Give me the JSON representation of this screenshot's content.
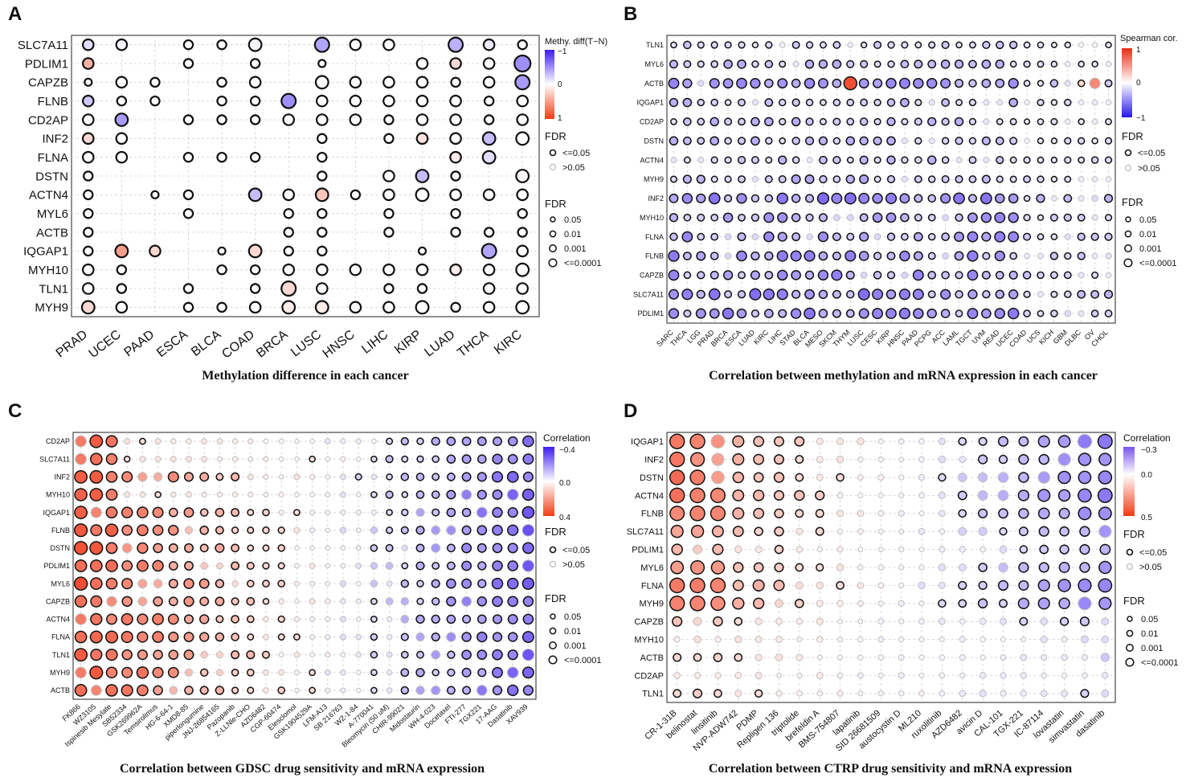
{
  "chart_data": [
    {
      "panel": "A",
      "type": "scatter",
      "caption": "Methylation difference in each cancer",
      "legend_title": "Methy. diff(T−N)",
      "colorbar_ticks": [
        "−1",
        "0",
        "1"
      ],
      "colorbar_range": [
        -1,
        1
      ],
      "colorbar_top": "#3c1cf0",
      "colorbar_mid": "#ffffff",
      "colorbar_bot": "#f03c14",
      "fdr_title_1": "FDR",
      "fdr_sig": [
        "<=0.05",
        ">0.05"
      ],
      "fdr_title_2": "FDR",
      "fdr_sizes": [
        "0.05",
        "0.01",
        "0.001",
        "<=0.0001"
      ],
      "rows": [
        "SLC7A11",
        "PDLIM1",
        "CAPZB",
        "FLNB",
        "CD2AP",
        "INF2",
        "FLNA",
        "DSTN",
        "ACTN4",
        "MYL6",
        "ACTB",
        "IQGAP1",
        "MYH10",
        "TLN1",
        "MYH9"
      ],
      "cols": [
        "PRAD",
        "UCEC",
        "PAAD",
        "ESCA",
        "BLCA",
        "COAD",
        "BRCA",
        "LUSC",
        "HNSC",
        "LIHC",
        "KIRP",
        "LUAD",
        "THCA",
        "KIRC"
      ],
      "values": [
        [
          -0.15,
          -0.05,
          null,
          0,
          0,
          -0.05,
          null,
          -0.4,
          0,
          0,
          null,
          -0.35,
          -0.1,
          0
        ],
        [
          0.4,
          null,
          null,
          0,
          null,
          0,
          null,
          0,
          null,
          null,
          0,
          0.2,
          0,
          -0.5
        ],
        [
          0,
          0,
          0,
          null,
          0,
          0,
          null,
          0,
          0,
          0,
          0,
          0,
          0,
          -0.45
        ],
        [
          -0.25,
          0,
          0,
          null,
          0,
          0,
          -0.5,
          0,
          0,
          0,
          0,
          0,
          0,
          0
        ],
        [
          0,
          -0.45,
          null,
          0,
          0,
          0,
          0,
          0,
          0,
          0,
          0,
          0,
          0,
          0
        ],
        [
          0.2,
          0,
          null,
          null,
          null,
          null,
          null,
          0,
          null,
          0,
          0.15,
          0,
          -0.3,
          0
        ],
        [
          0,
          0,
          null,
          0,
          0,
          0,
          null,
          0,
          null,
          null,
          null,
          0.1,
          -0.15,
          null
        ],
        [
          0,
          null,
          null,
          null,
          null,
          null,
          null,
          0,
          null,
          0,
          -0.3,
          0,
          null,
          0.05
        ],
        [
          0,
          null,
          0,
          0,
          null,
          -0.3,
          0,
          0.3,
          0,
          0,
          0,
          0,
          0,
          0
        ],
        [
          0,
          null,
          null,
          0,
          null,
          null,
          0,
          0,
          null,
          0,
          null,
          0,
          null,
          0
        ],
        [
          0,
          null,
          null,
          null,
          null,
          null,
          0,
          0,
          null,
          0,
          null,
          0,
          0,
          0
        ],
        [
          0,
          0.5,
          0.2,
          null,
          0,
          0.2,
          0,
          0,
          null,
          null,
          0,
          null,
          -0.4,
          0
        ],
        [
          0,
          0,
          null,
          null,
          0,
          0,
          0,
          0,
          0,
          0,
          0,
          0.1,
          0,
          0
        ],
        [
          0,
          0,
          null,
          0,
          null,
          0,
          0.2,
          0,
          null,
          0,
          0,
          null,
          0,
          0
        ],
        [
          0.2,
          0,
          null,
          0,
          0,
          0,
          0.1,
          0.1,
          0,
          0,
          0,
          0,
          0,
          0
        ]
      ],
      "sizes": [
        [
          2,
          2,
          null,
          1,
          1,
          3,
          null,
          4,
          2,
          2,
          null,
          4,
          2,
          1
        ],
        [
          2,
          null,
          null,
          1,
          null,
          1,
          null,
          0,
          null,
          null,
          2,
          2,
          2,
          5
        ],
        [
          0,
          2,
          1,
          null,
          1,
          2,
          null,
          3,
          2,
          2,
          2,
          1,
          2,
          4
        ],
        [
          2,
          1,
          1,
          null,
          1,
          1,
          4,
          2,
          2,
          2,
          2,
          2,
          1,
          2
        ],
        [
          2,
          3,
          null,
          1,
          1,
          1,
          2,
          2,
          2,
          1,
          2,
          2,
          1,
          2
        ],
        [
          2,
          2,
          null,
          null,
          null,
          null,
          null,
          1,
          null,
          1,
          2,
          2,
          3,
          3
        ],
        [
          2,
          2,
          null,
          1,
          1,
          1,
          null,
          1,
          null,
          null,
          null,
          2,
          3,
          null
        ],
        [
          1,
          null,
          null,
          null,
          null,
          null,
          null,
          1,
          null,
          2,
          3,
          1,
          null,
          3
        ],
        [
          1,
          null,
          0,
          1,
          null,
          3,
          2,
          3,
          1,
          2,
          3,
          2,
          2,
          2
        ],
        [
          1,
          null,
          null,
          1,
          null,
          null,
          1,
          1,
          null,
          1,
          null,
          1,
          null,
          1
        ],
        [
          1,
          null,
          null,
          null,
          null,
          null,
          1,
          1,
          null,
          1,
          null,
          1,
          1,
          1
        ],
        [
          1,
          3,
          2,
          null,
          0,
          3,
          1,
          1,
          null,
          null,
          0,
          null,
          4,
          2
        ],
        [
          2,
          1,
          null,
          null,
          1,
          1,
          2,
          2,
          2,
          2,
          2,
          2,
          2,
          3
        ],
        [
          2,
          1,
          null,
          1,
          null,
          1,
          4,
          2,
          null,
          1,
          1,
          null,
          2,
          2
        ],
        [
          3,
          2,
          null,
          1,
          1,
          2,
          3,
          3,
          2,
          2,
          3,
          1,
          2,
          3
        ]
      ]
    },
    {
      "panel": "B",
      "type": "scatter",
      "caption": "Correlation between methylation and mRNA expression in each cancer",
      "legend_title": "Spearman cor.",
      "colorbar_ticks": [
        "1",
        "0",
        "−1"
      ],
      "colorbar_range": [
        -1,
        1
      ],
      "colorbar_top": "#f02814",
      "colorbar_mid": "#ffffff",
      "colorbar_bot": "#2814f0",
      "fdr_title_1": "FDR",
      "fdr_sig": [
        "<=0.05",
        ">0.05"
      ],
      "fdr_title_2": "FDR",
      "fdr_sizes": [
        "0.05",
        "0.01",
        "0.001",
        "<=0.0001"
      ],
      "rows": [
        "TLN1",
        "MYL6",
        "ACTB",
        "IQGAP1",
        "CD2AP",
        "DSTN",
        "ACTN4",
        "MYH9",
        "INF2",
        "MYH10",
        "FLNA",
        "FLNB",
        "CAPZB",
        "SLC7A11",
        "PDLIM1"
      ],
      "cols": [
        "SARC",
        "THCA",
        "LGG",
        "PRAD",
        "BRCA",
        "ESCA",
        "LUAD",
        "KIRC",
        "LIHC",
        "STAD",
        "BLCA",
        "MESO",
        "SKCM",
        "THYM",
        "LUSC",
        "CESC",
        "KIRP",
        "HNSC",
        "PAAD",
        "PCPG",
        "ACC",
        "LAML",
        "TGCT",
        "UVM",
        "READ",
        "UCEC",
        "COAD",
        "UCS",
        "KICH",
        "GBM",
        "DLBC",
        "OV",
        "CHOL"
      ],
      "pattern": [
        0.22,
        0.3,
        0.45,
        0.3,
        0.3,
        0.3,
        0.3,
        0.35,
        0.55,
        0.45,
        0.45,
        0.5,
        0.45,
        0.55,
        0.5
      ],
      "highlights": [
        {
          "row": "ACTB",
          "col": "THYM",
          "value": 0.9
        },
        {
          "row": "ACTB",
          "col": "OV",
          "value": 0.6
        },
        {
          "row": "ACTB",
          "col": "DLBC",
          "value": 0.2
        }
      ]
    },
    {
      "panel": "C",
      "type": "scatter",
      "caption": "Correlation between GDSC drug sensitivity and mRNA expression",
      "legend_title": "Correlation",
      "colorbar_ticks": [
        "−0.4",
        "0.0",
        "0.4"
      ],
      "colorbar_range": [
        -0.4,
        0.4
      ],
      "colorbar_top": "#3c1cf0",
      "colorbar_mid": "#ffffff",
      "colorbar_bot": "#f03c14",
      "fdr_title_1": "FDR",
      "fdr_sig": [
        "<=0.05",
        ">0.05"
      ],
      "fdr_title_2": "FDR",
      "fdr_sizes": [
        "0.05",
        "0.01",
        "0.001",
        "<=0.0001"
      ],
      "rows": [
        "CD2AP",
        "SLC7A11",
        "INF2",
        "MYH10",
        "IQGAP1",
        "FLNB",
        "DSTN",
        "PDLIM1",
        "MYL6",
        "CAPZB",
        "ACTN4",
        "FLNA",
        "TLN1",
        "MYH9",
        "ACTB"
      ],
      "cols": [
        "FK866",
        "WZ3105",
        "Ispinesib Mesylate",
        "SB52334",
        "GSK269962A",
        "Temsirolimus",
        "HG-6-64-1",
        "XMD8-85",
        "piperlongumine",
        "JNJ-26854165",
        "Pazopanib",
        "Z-LLNle-CHO",
        "AZD6482",
        "CGP-60474",
        "Elesclomol",
        "GSK1904529A",
        "LFM-A13",
        "SB 216763",
        "WZ-1-84",
        "A-770041",
        "Bleomycin (50 uM)",
        "CHIR-99021",
        "Midostaurin",
        "WH-4-023",
        "Docetaxel",
        "FTI-277",
        "TGX221",
        "17-AAG",
        "Dasatinib",
        "XAV939"
      ]
    },
    {
      "panel": "D",
      "type": "scatter",
      "caption": "Correlation between CTRP drug sensitivity and mRNA expression",
      "legend_title": "Correlation",
      "colorbar_ticks": [
        "−0.3",
        "0.0",
        "0.5"
      ],
      "colorbar_range": [
        -0.3,
        0.5
      ],
      "colorbar_top": "#7a52f0",
      "colorbar_mid": "#ffffff",
      "colorbar_bot": "#f03c14",
      "fdr_title_1": "FDR",
      "fdr_sig": [
        "<=0.05",
        ">0.05"
      ],
      "fdr_title_2": "FDR",
      "fdr_sizes": [
        "0.05",
        "0.01",
        "0.001",
        "<=0.0001"
      ],
      "rows": [
        "IQGAP1",
        "INF2",
        "DSTN",
        "ACTN4",
        "FLNB",
        "SLC7A11",
        "PDLIM1",
        "MYL6",
        "FLNA",
        "MYH9",
        "CAPZB",
        "MYH10",
        "ACTB",
        "CD2AP",
        "TLN1"
      ],
      "cols": [
        "CR-1-31B",
        "belinostat",
        "linsitinib",
        "NVP-ADW742",
        "PDMP",
        "Repligen 136",
        "triptolide",
        "brefeldin A",
        "BMS-754807",
        "lapatinib",
        "SID 26681509",
        "austocystin D",
        "ML210",
        "ruxolitinib",
        "AZD6482",
        "avicin D",
        "CAL-101",
        "TGX-221",
        "IC-87114",
        "lovastatin",
        "simvastatin",
        "dasatinib"
      ],
      "row_strength": [
        1.0,
        0.9,
        0.95,
        1.0,
        0.9,
        0.7,
        0.5,
        0.75,
        0.95,
        0.9,
        0.4,
        0.2,
        0.3,
        0.2,
        0.3
      ]
    }
  ],
  "panel_labels": [
    "A",
    "B",
    "C",
    "D"
  ]
}
